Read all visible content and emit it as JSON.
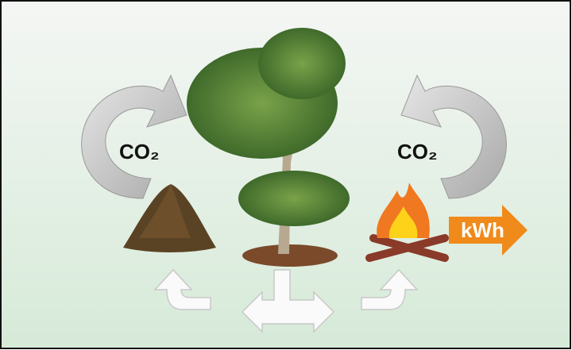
{
  "labels": {
    "left_co2": "CO₂",
    "right_co2": "CO₂",
    "energy": "kWh"
  }
}
